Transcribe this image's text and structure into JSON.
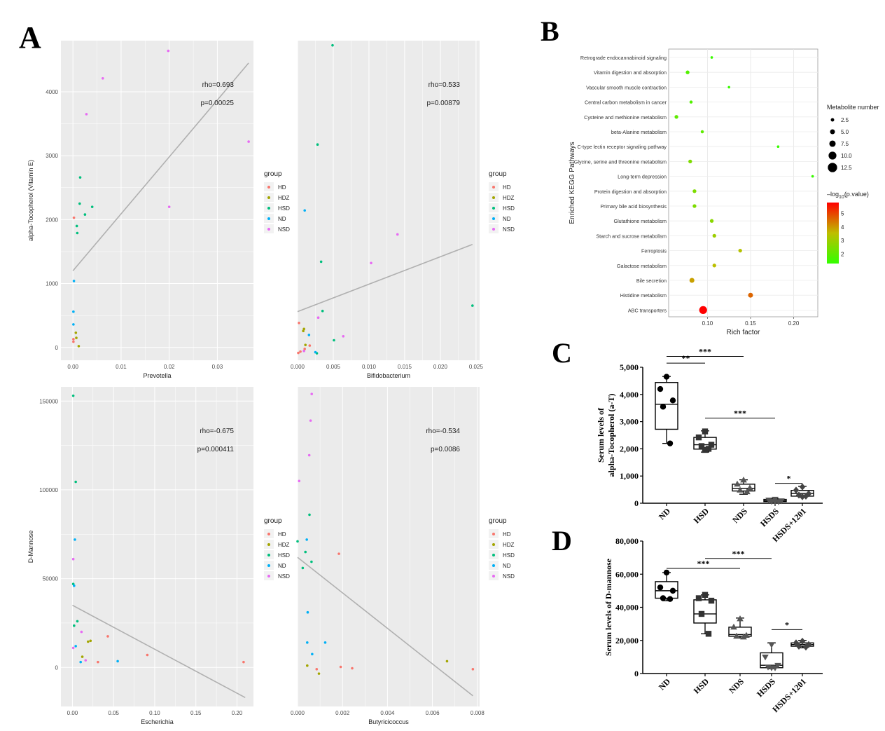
{
  "panels": {
    "A": "A",
    "B": "B",
    "C": "C",
    "D": "D"
  },
  "group_colors": {
    "HD": "#f8766d",
    "HDZ": "#a3a500",
    "HSD": "#00bf7d",
    "ND": "#00b0f6",
    "NSD": "#e76bf3"
  },
  "legend": {
    "title": "group",
    "items": [
      "HD",
      "HDZ",
      "HSD",
      "ND",
      "NSD"
    ]
  },
  "chart_data": [
    {
      "id": "a1",
      "type": "scatter",
      "title": "",
      "xlabel": "Prevotella",
      "ylabel": "alpha-Tocopherol (Vitamin E)",
      "xlim": [
        -0.0025,
        0.0375
      ],
      "ylim": [
        -200,
        4800
      ],
      "xticks": [
        0.0,
        0.01,
        0.02,
        0.03
      ],
      "xtick_labels": [
        "0.00",
        "0.01",
        "0.02",
        "0.03"
      ],
      "yticks": [
        0,
        1000,
        2000,
        3000,
        4000
      ],
      "ytick_labels": [
        "0",
        "1000",
        "2000",
        "3000",
        "4000"
      ],
      "rho": "rho=0.693",
      "p": "p=0.00025",
      "fit": [
        [
          0.0,
          1200
        ],
        [
          0.0365,
          4450
        ]
      ],
      "points": [
        {
          "g": "NSD",
          "x": 0.0198,
          "y": 4640
        },
        {
          "g": "NSD",
          "x": 0.0062,
          "y": 4210
        },
        {
          "g": "NSD",
          "x": 0.0028,
          "y": 3650
        },
        {
          "g": "NSD",
          "x": 0.0365,
          "y": 3220
        },
        {
          "g": "NSD",
          "x": 0.02,
          "y": 2200
        },
        {
          "g": "HSD",
          "x": 0.0015,
          "y": 2660
        },
        {
          "g": "HSD",
          "x": 0.0014,
          "y": 2250
        },
        {
          "g": "HSD",
          "x": 0.004,
          "y": 2200
        },
        {
          "g": "HSD",
          "x": 0.0025,
          "y": 2080
        },
        {
          "g": "HSD",
          "x": 0.0008,
          "y": 1900
        },
        {
          "g": "HSD",
          "x": 0.0009,
          "y": 1790
        },
        {
          "g": "HD",
          "x": 0.0002,
          "y": 2030
        },
        {
          "g": "ND",
          "x": 0.0002,
          "y": 1040
        },
        {
          "g": "ND",
          "x": 0.0001,
          "y": 560
        },
        {
          "g": "ND",
          "x": 0.0001,
          "y": 360
        },
        {
          "g": "HDZ",
          "x": 0.0006,
          "y": 230
        },
        {
          "g": "HDZ",
          "x": 0.0007,
          "y": 150
        },
        {
          "g": "HDZ",
          "x": 0.0012,
          "y": 20
        },
        {
          "g": "HD",
          "x": 0.0001,
          "y": 130
        },
        {
          "g": "HD",
          "x": 0.0001,
          "y": 90
        }
      ]
    },
    {
      "id": "a2",
      "type": "scatter",
      "title": "",
      "xlabel": "Bifidobacterium",
      "ylabel": "",
      "xlim": [
        0.0,
        0.0255
      ],
      "ylim": [
        -80,
        4720
      ],
      "xticks": [
        0.0,
        0.005,
        0.01,
        0.015,
        0.02,
        0.025
      ],
      "xtick_labels": [
        "0.000",
        "0.005",
        "0.010",
        "0.015",
        "0.020",
        "0.025"
      ],
      "yticks": [],
      "ytick_labels": [],
      "rho": "rho=0.533",
      "p": "p=0.00879",
      "fit": [
        [
          0.0,
          650
        ],
        [
          0.0245,
          1660
        ]
      ],
      "points": [
        {
          "g": "HSD",
          "x": 0.0049,
          "y": 4650
        },
        {
          "g": "HSD",
          "x": 0.0028,
          "y": 3160
        },
        {
          "g": "HSD",
          "x": 0.0033,
          "y": 1400
        },
        {
          "g": "HSD",
          "x": 0.0245,
          "y": 740
        },
        {
          "g": "HSD",
          "x": 0.0035,
          "y": 660
        },
        {
          "g": "HSD",
          "x": 0.0051,
          "y": 220
        },
        {
          "g": "HSD",
          "x": 0.0027,
          "y": 25
        },
        {
          "g": "ND",
          "x": 0.001,
          "y": 2170
        },
        {
          "g": "ND",
          "x": 0.0016,
          "y": 300
        },
        {
          "g": "ND",
          "x": 0.0025,
          "y": 40
        },
        {
          "g": "NSD",
          "x": 0.014,
          "y": 1810
        },
        {
          "g": "NSD",
          "x": 0.0103,
          "y": 1380
        },
        {
          "g": "NSD",
          "x": 0.0029,
          "y": 560
        },
        {
          "g": "NSD",
          "x": 0.0064,
          "y": 280
        },
        {
          "g": "NSD",
          "x": 0.0009,
          "y": 60
        },
        {
          "g": "HDZ",
          "x": 0.0009,
          "y": 390
        },
        {
          "g": "HDZ",
          "x": 0.0008,
          "y": 360
        },
        {
          "g": "HDZ",
          "x": 0.0011,
          "y": 150
        },
        {
          "g": "HD",
          "x": 0.0002,
          "y": 480
        },
        {
          "g": "HD",
          "x": 0.0017,
          "y": 140
        },
        {
          "g": "HD",
          "x": 0.0001,
          "y": 30
        },
        {
          "g": "HD",
          "x": 0.0004,
          "y": 50
        },
        {
          "g": "HD",
          "x": 0.001,
          "y": 90
        }
      ]
    },
    {
      "id": "a3",
      "type": "scatter",
      "title": "",
      "xlabel": "Escherichia",
      "ylabel": "D-Mannose",
      "xlim": [
        -0.014,
        0.22
      ],
      "ylim": [
        -22000,
        158000
      ],
      "xticks": [
        0.0,
        0.05,
        0.1,
        0.15,
        0.2
      ],
      "xtick_labels": [
        "0.00",
        "0.05",
        "0.10",
        "0.15",
        "0.20"
      ],
      "yticks": [
        0,
        50000,
        100000,
        150000
      ],
      "ytick_labels": [
        "0",
        "50000",
        "100000",
        "150000"
      ],
      "rho": "rho=-0.675",
      "p": "p=0.000411",
      "fit": [
        [
          0.0,
          35000
        ],
        [
          0.21,
          -17000
        ]
      ],
      "points": [
        {
          "g": "HSD",
          "x": 0.001,
          "y": 153000
        },
        {
          "g": "HSD",
          "x": 0.004,
          "y": 104500
        },
        {
          "g": "HSD",
          "x": 0.001,
          "y": 47000
        },
        {
          "g": "HSD",
          "x": 0.006,
          "y": 26000
        },
        {
          "g": "HSD",
          "x": 0.002,
          "y": 23500
        },
        {
          "g": "ND",
          "x": 0.003,
          "y": 72000
        },
        {
          "g": "ND",
          "x": 0.002,
          "y": 46000
        },
        {
          "g": "ND",
          "x": 0.004,
          "y": 12000
        },
        {
          "g": "ND",
          "x": 0.055,
          "y": 3500
        },
        {
          "g": "ND",
          "x": 0.01,
          "y": 3000
        },
        {
          "g": "NSD",
          "x": 0.001,
          "y": 61000
        },
        {
          "g": "NSD",
          "x": 0.011,
          "y": 20000
        },
        {
          "g": "NSD",
          "x": 0.001,
          "y": 11000
        },
        {
          "g": "NSD",
          "x": 0.016,
          "y": 4000
        },
        {
          "g": "HDZ",
          "x": 0.019,
          "y": 14500
        },
        {
          "g": "HDZ",
          "x": 0.022,
          "y": 15000
        },
        {
          "g": "HDZ",
          "x": 0.012,
          "y": 6000
        },
        {
          "g": "HD",
          "x": 0.043,
          "y": 17500
        },
        {
          "g": "HD",
          "x": 0.091,
          "y": 7000
        },
        {
          "g": "HD",
          "x": 0.031,
          "y": 3000
        },
        {
          "g": "HD",
          "x": 0.208,
          "y": 3000
        }
      ]
    },
    {
      "id": "a4",
      "type": "scatter",
      "title": "",
      "xlabel": "Butyricicoccus",
      "ylabel": "",
      "xlim": [
        0.0,
        0.0081
      ],
      "ylim": [
        -22000,
        158000
      ],
      "xticks": [
        0.0,
        0.002,
        0.004,
        0.006,
        0.008
      ],
      "xtick_labels": [
        "0.000",
        "0.002",
        "0.004",
        "0.006",
        "0.008"
      ],
      "yticks": [],
      "ytick_labels": [],
      "rho": "rho=-0.534",
      "p": "p=0.0086",
      "fit": [
        [
          0.0,
          62000
        ],
        [
          0.0078,
          -16000
        ]
      ],
      "points": [
        {
          "g": "NSD",
          "x": 0.00063,
          "y": 154000
        },
        {
          "g": "NSD",
          "x": 0.00058,
          "y": 139000
        },
        {
          "g": "NSD",
          "x": 0.00052,
          "y": 119500
        },
        {
          "g": "NSD",
          "x": 7e-05,
          "y": 105000
        },
        {
          "g": "HSD",
          "x": 0.00053,
          "y": 86000
        },
        {
          "g": "HSD",
          "x": 0.00035,
          "y": 65000
        },
        {
          "g": "HSD",
          "x": 0.00062,
          "y": 59500
        },
        {
          "g": "HSD",
          "x": 0.00023,
          "y": 56000
        },
        {
          "g": "HSD",
          "x": 0.0,
          "y": 71000
        },
        {
          "g": "ND",
          "x": 0.00041,
          "y": 72000
        },
        {
          "g": "ND",
          "x": 0.00045,
          "y": 31000
        },
        {
          "g": "ND",
          "x": 0.00123,
          "y": 14000
        },
        {
          "g": "ND",
          "x": 0.00043,
          "y": 14000
        },
        {
          "g": "ND",
          "x": 0.00065,
          "y": 7500
        },
        {
          "g": "HD",
          "x": 0.00184,
          "y": 64000
        },
        {
          "g": "HD",
          "x": 0.00192,
          "y": 300
        },
        {
          "g": "HD",
          "x": 0.00243,
          "y": -500
        },
        {
          "g": "HD",
          "x": 0.0078,
          "y": -1000
        },
        {
          "g": "HD",
          "x": 0.00085,
          "y": -1000
        },
        {
          "g": "HDZ",
          "x": 0.00043,
          "y": 1000
        },
        {
          "g": "HDZ",
          "x": 0.00095,
          "y": -3500
        },
        {
          "g": "HDZ",
          "x": 0.00665,
          "y": 3500
        }
      ]
    },
    {
      "id": "b",
      "type": "scatter",
      "title": "",
      "xlabel": "Rich factor",
      "ylabel": "Enriched KEGG Pathways",
      "xlim": [
        0.055,
        0.228
      ],
      "xticks": [
        0.1,
        0.15,
        0.2
      ],
      "xtick_labels": [
        "0.10",
        "0.15",
        "0.20"
      ],
      "pathways": [
        "Retrograde endocannabinoid signaling",
        "Vitamin digestion and absorption",
        "Vascular smooth muscle contraction",
        "Central carbon metabolism in cancer",
        "Cysteine and methionine metabolism",
        "beta-Alanine metabolism",
        "C-type lectin receptor signaling pathway",
        "Glycine, serine and threonine metabolism",
        "Long-term depression",
        "Protein digestion and absorption",
        "Primary bile acid biosynthesis",
        "Glutathione metabolism",
        "Starch and sucrose metabolism",
        "Ferroptosis",
        "Galactose metabolism",
        "Bile secretion",
        "Histidine metabolism",
        "ABC transporters"
      ],
      "rich_factor": [
        0.105,
        0.077,
        0.125,
        0.081,
        0.064,
        0.094,
        0.182,
        0.08,
        0.222,
        0.085,
        0.085,
        0.105,
        0.108,
        0.138,
        0.108,
        0.082,
        0.15,
        0.095
      ],
      "count": [
        1,
        3,
        1,
        2,
        3,
        2,
        1,
        3,
        1,
        3,
        3,
        3,
        3,
        3,
        3,
        5,
        5,
        10
      ],
      "neglog10p": [
        1.4,
        1.8,
        1.4,
        1.8,
        2.0,
        2.0,
        1.4,
        2.5,
        1.4,
        2.5,
        2.5,
        2.7,
        3.0,
        3.4,
        3.5,
        3.9,
        4.6,
        5.8
      ],
      "size_legend": {
        "title": "Metabolite number",
        "labels": [
          "2.5",
          "5.0",
          "7.5",
          "10.0",
          "12.5"
        ],
        "values": [
          2.5,
          5.0,
          7.5,
          10.0,
          12.5
        ]
      },
      "color_legend": {
        "title_main": "–log",
        "title_sub": "10",
        "title_rest": "(p.value)",
        "labels": [
          "5",
          "4",
          "3",
          "2"
        ],
        "values": [
          5,
          4,
          3,
          2
        ],
        "range": [
          1.3,
          5.8
        ]
      }
    },
    {
      "id": "c",
      "type": "box",
      "ylabel_lines": [
        "Serum levels of",
        "alpha-Tocopherol (a-T)"
      ],
      "categories": [
        "ND",
        "HSD",
        "NDS",
        "HSDS",
        "HSDS+1201"
      ],
      "ylim": [
        0,
        5000
      ],
      "yticks": [
        0,
        1000,
        2000,
        3000,
        4000,
        5000
      ],
      "ytick_labels": [
        "0",
        "1,000",
        "2,000",
        "3,000",
        "4,000",
        "5,000"
      ],
      "boxes": [
        {
          "min": 2200,
          "q1": 2720,
          "median": 3640,
          "q3": 4440,
          "max": 4660,
          "points": [
            4650,
            4200,
            3780,
            3550,
            2200
          ],
          "marker": "circle"
        },
        {
          "min": 1880,
          "q1": 1990,
          "median": 2150,
          "q3": 2420,
          "max": 2660,
          "points": [
            2640,
            2420,
            2150,
            2100,
            2000,
            1960
          ],
          "marker": "square"
        },
        {
          "min": 330,
          "q1": 450,
          "median": 550,
          "q3": 700,
          "max": 860,
          "points": [
            850,
            700,
            560,
            480,
            420
          ],
          "marker": "triangle"
        },
        {
          "min": 40,
          "q1": 60,
          "median": 90,
          "q3": 140,
          "max": 170,
          "points": [
            150,
            120,
            90,
            70,
            60,
            50
          ],
          "marker": "triangle-down"
        },
        {
          "min": 220,
          "q1": 260,
          "median": 360,
          "q3": 470,
          "max": 620,
          "points": [
            600,
            480,
            350,
            300,
            260,
            240
          ],
          "marker": "diamond"
        }
      ],
      "significance": [
        {
          "from": 0,
          "to": 1,
          "label": "**",
          "y": 5150
        },
        {
          "from": 0,
          "to": 2,
          "label": "***",
          "y": 5400
        },
        {
          "from": 1,
          "to": 3,
          "label": "***",
          "y": 3130
        },
        {
          "from": 3,
          "to": 4,
          "label": "*",
          "y": 730
        }
      ]
    },
    {
      "id": "d",
      "type": "box",
      "ylabel_lines": [
        "Serum levels of D-mannose"
      ],
      "categories": [
        "ND",
        "HSD",
        "NDS",
        "HSDS",
        "HSDS+1201"
      ],
      "ylim": [
        0,
        80000
      ],
      "yticks": [
        0,
        20000,
        40000,
        60000,
        80000
      ],
      "ytick_labels": [
        "0",
        "20,000",
        "40,000",
        "60,000",
        "80,000"
      ],
      "boxes": [
        {
          "min": 44000,
          "q1": 45500,
          "median": 50000,
          "q3": 55500,
          "max": 61000,
          "points": [
            61000,
            52000,
            50000,
            45500,
            45000
          ],
          "marker": "circle"
        },
        {
          "min": 24000,
          "q1": 30500,
          "median": 36000,
          "q3": 44500,
          "max": 47500,
          "points": [
            47500,
            45500,
            44000,
            36000,
            24000
          ],
          "marker": "square"
        },
        {
          "min": 21500,
          "q1": 22500,
          "median": 23500,
          "q3": 28000,
          "max": 33500,
          "points": [
            33000,
            28000,
            23000,
            22500,
            22000
          ],
          "marker": "triangle"
        },
        {
          "min": 3000,
          "q1": 3500,
          "median": 5000,
          "q3": 12500,
          "max": 18500,
          "points": [
            17500,
            10000,
            5000,
            4000,
            3500,
            3500
          ],
          "marker": "triangle-down"
        },
        {
          "min": 15500,
          "q1": 16500,
          "median": 17500,
          "q3": 18500,
          "max": 20000,
          "points": [
            19500,
            18500,
            17500,
            16500,
            16000
          ],
          "marker": "diamond"
        }
      ],
      "significance": [
        {
          "from": 0,
          "to": 2,
          "label": "***",
          "y": 63500
        },
        {
          "from": 1,
          "to": 3,
          "label": "***",
          "y": 69500
        },
        {
          "from": 3,
          "to": 4,
          "label": "*",
          "y": 26500
        }
      ]
    }
  ]
}
